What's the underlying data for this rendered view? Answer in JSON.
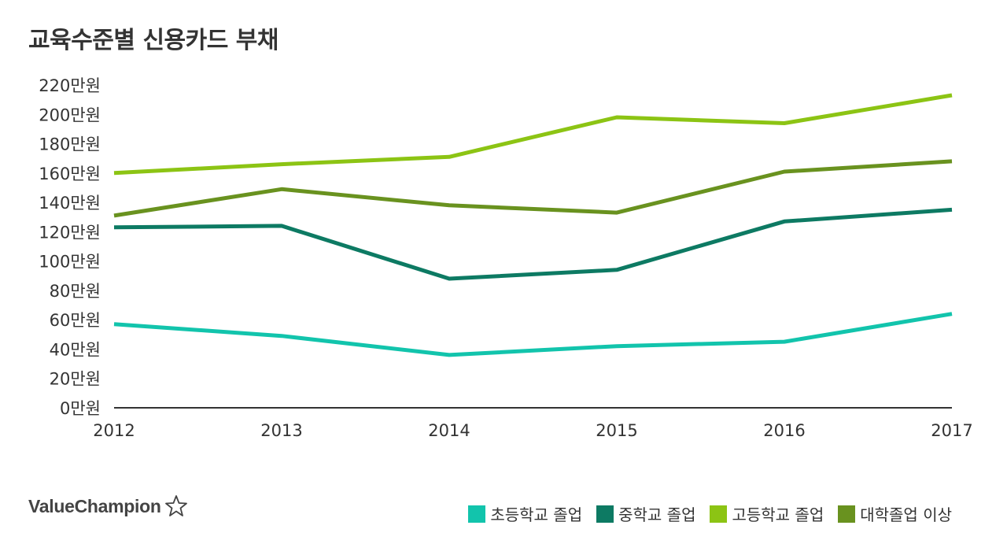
{
  "chart_data": {
    "type": "line",
    "title": "교육수준별 신용카드 부채",
    "xlabel": "",
    "ylabel": "",
    "x": [
      "2012",
      "2013",
      "2014",
      "2015",
      "2016",
      "2017"
    ],
    "y_ticks": [
      "0만원",
      "20만원",
      "40만원",
      "60만원",
      "80만원",
      "100만원",
      "120만원",
      "140만원",
      "160만원",
      "180만원",
      "200만원",
      "220만원"
    ],
    "ylim": [
      0,
      220
    ],
    "grid": false,
    "legend_position": "bottom-right",
    "series": [
      {
        "name": "초등학교 졸업",
        "color": "#12c4ac",
        "values": [
          57,
          49,
          36,
          42,
          45,
          64
        ]
      },
      {
        "name": "중학교 졸업",
        "color": "#0d7a63",
        "values": [
          123,
          124,
          88,
          94,
          127,
          135
        ]
      },
      {
        "name": "고등학교 졸업",
        "color": "#8cc414",
        "values": [
          160,
          166,
          171,
          198,
          194,
          213
        ]
      },
      {
        "name": "대학졸업 이상",
        "color": "#69921f",
        "values": [
          131,
          149,
          138,
          133,
          161,
          168
        ]
      }
    ]
  },
  "brand": {
    "name": "ValueChampion",
    "icon": "star-icon"
  }
}
